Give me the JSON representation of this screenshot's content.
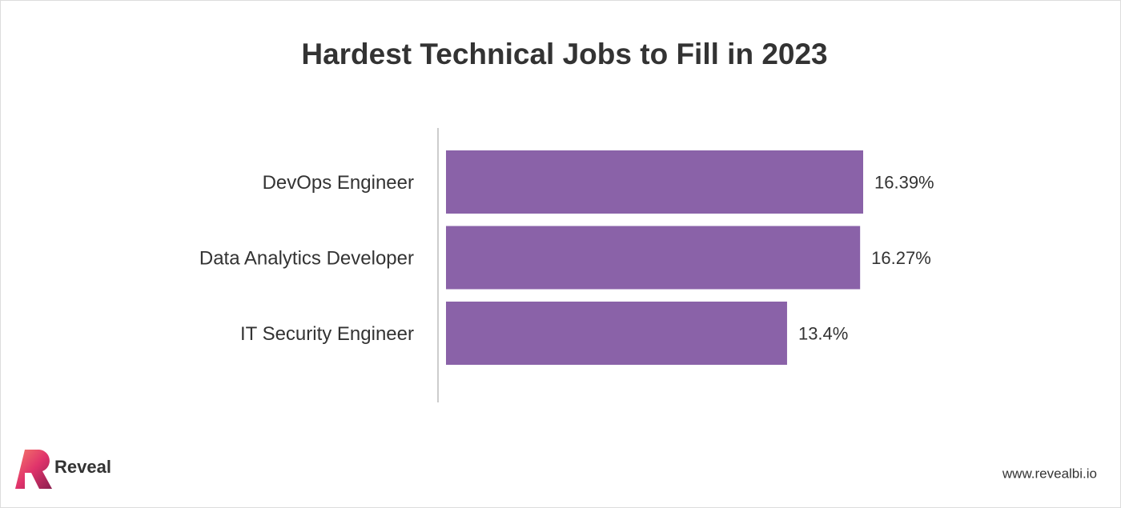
{
  "chart_data": {
    "type": "bar",
    "orientation": "horizontal",
    "title": "Hardest Technical Jobs to Fill in 2023",
    "categories": [
      "DevOps Engineer",
      "Data Analytics Developer",
      "IT Security Engineer"
    ],
    "values": [
      16.39,
      16.27,
      13.4
    ],
    "value_labels": [
      "16.39%",
      "16.27%",
      "13.4%"
    ],
    "color": "#8a62a8"
  },
  "footer": {
    "brand": "Reveal",
    "url": "www.revealbi.io"
  }
}
